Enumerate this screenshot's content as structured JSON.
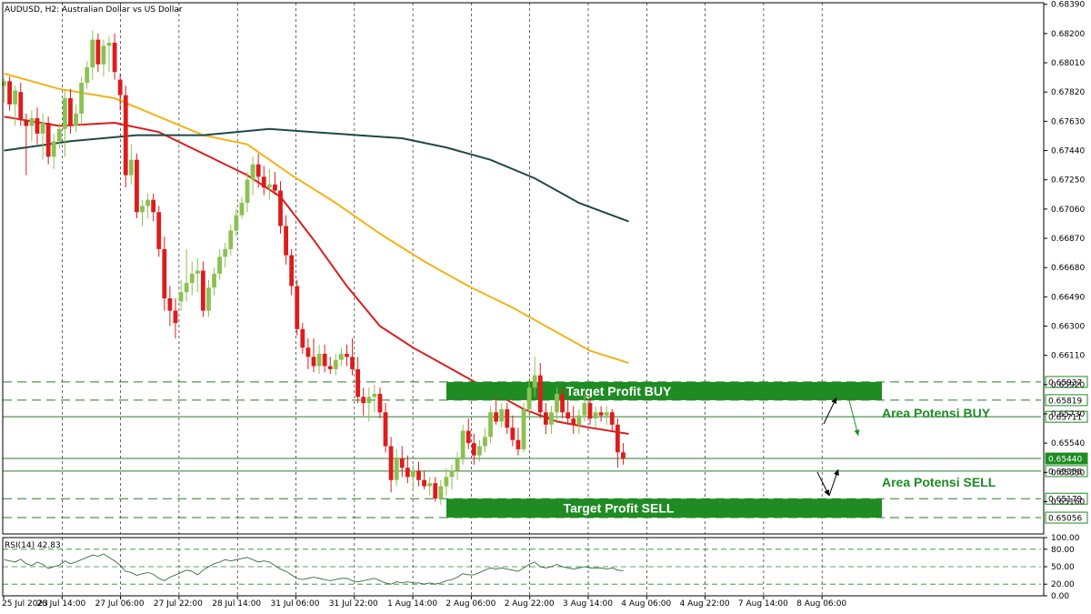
{
  "window": {
    "title": "AUDUSD, H2:  Australian Dollar vs US Dollar"
  },
  "colors": {
    "bull": "#8cc152",
    "bear": "#dd1c1c",
    "ma_red": "#dd1c1c",
    "ma_orange": "#f2b31a",
    "ma_teal": "#1d4a45",
    "zone": "#1e8c23",
    "rsi_line": "#1f5a2a",
    "grid": "#000000",
    "hline": "#2b7a2b"
  },
  "chart_data": {
    "type": "candlestick",
    "symbol": "AUDUSD",
    "timeframe": "H2",
    "ylim": [
      0.6495,
      0.684
    ],
    "price_ticks": [
      "0.68390",
      "0.68200",
      "0.68010",
      "0.67820",
      "0.67630",
      "0.67440",
      "0.67250",
      "0.67060",
      "0.66870",
      "0.66680",
      "0.66490",
      "0.66300",
      "0.66110",
      "0.65920",
      "0.65730",
      "0.65540",
      "0.65350",
      "0.65160"
    ],
    "x_labels": [
      "25 Jul 2023",
      "26 Jul 14:00",
      "27 Jul 06:00",
      "27 Jul 22:00",
      "28 Jul 14:00",
      "31 Jul 06:00",
      "31 Jul 22:00",
      "1 Aug 14:00",
      "2 Aug 06:00",
      "2 Aug 22:00",
      "3 Aug 14:00",
      "4 Aug 06:00",
      "4 Aug 22:00",
      "7 Aug 14:00",
      "8 Aug 06:00"
    ],
    "candles": [
      [
        0.6786,
        0.6791,
        0.6775,
        0.6789
      ],
      [
        0.6789,
        0.6792,
        0.677,
        0.6774
      ],
      [
        0.6774,
        0.6786,
        0.676,
        0.6783
      ],
      [
        0.6782,
        0.6788,
        0.676,
        0.6764
      ],
      [
        0.6764,
        0.6768,
        0.6728,
        0.676
      ],
      [
        0.676,
        0.677,
        0.675,
        0.6765
      ],
      [
        0.6765,
        0.6772,
        0.6748,
        0.6755
      ],
      [
        0.6755,
        0.6768,
        0.6738,
        0.6762
      ],
      [
        0.6762,
        0.6766,
        0.6735,
        0.674
      ],
      [
        0.674,
        0.6755,
        0.6732,
        0.675
      ],
      [
        0.675,
        0.6762,
        0.6745,
        0.6758
      ],
      [
        0.6758,
        0.6784,
        0.674,
        0.6778
      ],
      [
        0.6778,
        0.6784,
        0.6755,
        0.676
      ],
      [
        0.676,
        0.6774,
        0.6756,
        0.6768
      ],
      [
        0.6768,
        0.6792,
        0.676,
        0.6788
      ],
      [
        0.6788,
        0.6802,
        0.6784,
        0.6798
      ],
      [
        0.6798,
        0.6822,
        0.679,
        0.6816
      ],
      [
        0.6816,
        0.682,
        0.6795,
        0.68
      ],
      [
        0.68,
        0.6816,
        0.6792,
        0.6812
      ],
      [
        0.6812,
        0.6818,
        0.6795,
        0.6814
      ],
      [
        0.6814,
        0.682,
        0.679,
        0.6795
      ],
      [
        0.679,
        0.6794,
        0.677,
        0.678
      ],
      [
        0.678,
        0.6786,
        0.672,
        0.6728
      ],
      [
        0.6728,
        0.6748,
        0.6722,
        0.6738
      ],
      [
        0.6738,
        0.6742,
        0.67,
        0.6704
      ],
      [
        0.6704,
        0.6712,
        0.6695,
        0.6708
      ],
      [
        0.6708,
        0.6716,
        0.67,
        0.6712
      ],
      [
        0.6712,
        0.6716,
        0.6698,
        0.6704
      ],
      [
        0.6704,
        0.6708,
        0.6675,
        0.668
      ],
      [
        0.668,
        0.6688,
        0.664,
        0.6648
      ],
      [
        0.6648,
        0.6656,
        0.663,
        0.664
      ],
      [
        0.664,
        0.6648,
        0.6622,
        0.6632
      ],
      [
        0.6646,
        0.666,
        0.664,
        0.6652
      ],
      [
        0.6652,
        0.668,
        0.6646,
        0.6658
      ],
      [
        0.6658,
        0.6672,
        0.665,
        0.6664
      ],
      [
        0.6664,
        0.6674,
        0.6652,
        0.6666
      ],
      [
        0.6666,
        0.6672,
        0.6636,
        0.664
      ],
      [
        0.664,
        0.666,
        0.6636,
        0.6655
      ],
      [
        0.6655,
        0.6668,
        0.665,
        0.6664
      ],
      [
        0.6664,
        0.668,
        0.666,
        0.6675
      ],
      [
        0.6675,
        0.6684,
        0.6668,
        0.668
      ],
      [
        0.668,
        0.6696,
        0.6676,
        0.6692
      ],
      [
        0.6692,
        0.6706,
        0.6688,
        0.6702
      ],
      [
        0.6702,
        0.6714,
        0.67,
        0.671
      ],
      [
        0.671,
        0.673,
        0.6704,
        0.6725
      ],
      [
        0.6725,
        0.674,
        0.6715,
        0.6735
      ],
      [
        0.6735,
        0.6742,
        0.672,
        0.6727
      ],
      [
        0.6727,
        0.6734,
        0.6715,
        0.672
      ],
      [
        0.672,
        0.6732,
        0.6712,
        0.6722
      ],
      [
        0.6722,
        0.673,
        0.6715,
        0.6718
      ],
      [
        0.6718,
        0.6724,
        0.669,
        0.6695
      ],
      [
        0.6695,
        0.6702,
        0.667,
        0.6676
      ],
      [
        0.6676,
        0.668,
        0.665,
        0.6656
      ],
      [
        0.6656,
        0.666,
        0.6624,
        0.6628
      ],
      [
        0.6628,
        0.6632,
        0.6612,
        0.6616
      ],
      [
        0.6616,
        0.6622,
        0.6602,
        0.661
      ],
      [
        0.661,
        0.6622,
        0.66,
        0.6604
      ],
      [
        0.6604,
        0.6618,
        0.6599,
        0.6612
      ],
      [
        0.6612,
        0.6618,
        0.66,
        0.6604
      ],
      [
        0.6604,
        0.661,
        0.6599,
        0.6602
      ],
      [
        0.6602,
        0.6612,
        0.6598,
        0.6608
      ],
      [
        0.6608,
        0.6616,
        0.6604,
        0.6612
      ],
      [
        0.6612,
        0.6618,
        0.6604,
        0.661
      ],
      [
        0.661,
        0.6622,
        0.6598,
        0.6602
      ],
      [
        0.6602,
        0.661,
        0.658,
        0.6584
      ],
      [
        0.6584,
        0.659,
        0.6572,
        0.658
      ],
      [
        0.658,
        0.659,
        0.6568,
        0.6584
      ],
      [
        0.6584,
        0.6592,
        0.6574,
        0.6586
      ],
      [
        0.6586,
        0.659,
        0.657,
        0.6574
      ],
      [
        0.6574,
        0.658,
        0.6548,
        0.6552
      ],
      [
        0.6552,
        0.6558,
        0.6522,
        0.653
      ],
      [
        0.653,
        0.655,
        0.6526,
        0.6544
      ],
      [
        0.6544,
        0.6552,
        0.6532,
        0.6538
      ],
      [
        0.6538,
        0.6546,
        0.6528,
        0.6532
      ],
      [
        0.6532,
        0.654,
        0.6524,
        0.6536
      ],
      [
        0.6536,
        0.6542,
        0.6526,
        0.653
      ],
      [
        0.653,
        0.6536,
        0.6524,
        0.6526
      ],
      [
        0.6526,
        0.6532,
        0.652,
        0.6528
      ],
      [
        0.6528,
        0.6532,
        0.6516,
        0.6518
      ],
      [
        0.6518,
        0.653,
        0.6514,
        0.6526
      ],
      [
        0.6526,
        0.6538,
        0.652,
        0.6532
      ],
      [
        0.6532,
        0.654,
        0.6524,
        0.6536
      ],
      [
        0.6536,
        0.6548,
        0.653,
        0.6544
      ],
      [
        0.6544,
        0.6566,
        0.654,
        0.6562
      ],
      [
        0.6562,
        0.657,
        0.655,
        0.6554
      ],
      [
        0.6554,
        0.656,
        0.654,
        0.6546
      ],
      [
        0.6546,
        0.6556,
        0.6542,
        0.6552
      ],
      [
        0.6552,
        0.6564,
        0.6548,
        0.6558
      ],
      [
        0.6558,
        0.6578,
        0.6554,
        0.6574
      ],
      [
        0.6574,
        0.6584,
        0.6566,
        0.6568
      ],
      [
        0.6568,
        0.658,
        0.6564,
        0.6576
      ],
      [
        0.6576,
        0.658,
        0.656,
        0.6564
      ],
      [
        0.6564,
        0.6572,
        0.6552,
        0.6556
      ],
      [
        0.6556,
        0.6564,
        0.6546,
        0.655
      ],
      [
        0.655,
        0.658,
        0.6548,
        0.6576
      ],
      [
        0.6576,
        0.6596,
        0.657,
        0.659
      ],
      [
        0.659,
        0.661,
        0.6584,
        0.6598
      ],
      [
        0.6598,
        0.6606,
        0.657,
        0.6574
      ],
      [
        0.6574,
        0.658,
        0.656,
        0.6566
      ],
      [
        0.6566,
        0.6578,
        0.656,
        0.6574
      ],
      [
        0.6574,
        0.659,
        0.6568,
        0.6586
      ],
      [
        0.6586,
        0.659,
        0.657,
        0.6574
      ],
      [
        0.6574,
        0.6582,
        0.6566,
        0.657
      ],
      [
        0.657,
        0.6578,
        0.656,
        0.6566
      ],
      [
        0.6566,
        0.6576,
        0.656,
        0.6572
      ],
      [
        0.6572,
        0.6586,
        0.6568,
        0.658
      ],
      [
        0.658,
        0.6584,
        0.6566,
        0.657
      ],
      [
        0.657,
        0.6578,
        0.6564,
        0.6574
      ],
      [
        0.6574,
        0.6578,
        0.6568,
        0.6572
      ],
      [
        0.6572,
        0.6578,
        0.6566,
        0.6574
      ],
      [
        0.6574,
        0.6576,
        0.6562,
        0.6566
      ],
      [
        0.6566,
        0.657,
        0.6538,
        0.6548
      ],
      [
        0.6548,
        0.6554,
        0.654,
        0.6544
      ]
    ],
    "moving_averages": [
      {
        "color": "#dd1c1c",
        "points": [
          [
            0,
            0.6766
          ],
          [
            10,
            0.676
          ],
          [
            20,
            0.6762
          ],
          [
            28,
            0.6756
          ],
          [
            36,
            0.6742
          ],
          [
            44,
            0.6728
          ],
          [
            50,
            0.6714
          ],
          [
            56,
            0.6686
          ],
          [
            62,
            0.6656
          ],
          [
            68,
            0.663
          ],
          [
            74,
            0.6616
          ],
          [
            82,
            0.66
          ],
          [
            88,
            0.6588
          ],
          [
            94,
            0.6576
          ],
          [
            100,
            0.6568
          ],
          [
            106,
            0.6564
          ],
          [
            113,
            0.656
          ]
        ]
      },
      {
        "color": "#f2b31a",
        "points": [
          [
            0,
            0.6794
          ],
          [
            10,
            0.6784
          ],
          [
            20,
            0.6778
          ],
          [
            28,
            0.6766
          ],
          [
            36,
            0.6754
          ],
          [
            44,
            0.6748
          ],
          [
            52,
            0.6728
          ],
          [
            60,
            0.671
          ],
          [
            68,
            0.669
          ],
          [
            76,
            0.6672
          ],
          [
            84,
            0.6656
          ],
          [
            92,
            0.6642
          ],
          [
            100,
            0.6626
          ],
          [
            106,
            0.6614
          ],
          [
            113,
            0.6606
          ]
        ]
      },
      {
        "color": "#1d4a45",
        "points": [
          [
            0,
            0.6744
          ],
          [
            12,
            0.675
          ],
          [
            24,
            0.6754
          ],
          [
            36,
            0.6754
          ],
          [
            48,
            0.6758
          ],
          [
            56,
            0.6756
          ],
          [
            64,
            0.6754
          ],
          [
            72,
            0.6752
          ],
          [
            80,
            0.6746
          ],
          [
            88,
            0.6738
          ],
          [
            96,
            0.6726
          ],
          [
            104,
            0.671
          ],
          [
            113,
            0.6698
          ]
        ]
      }
    ],
    "horizontal_lines": [
      {
        "price": "0.65937",
        "style": "dashed"
      },
      {
        "price": "0.65819",
        "style": "dashed"
      },
      {
        "price": "0.65711",
        "style": "solid"
      },
      {
        "price": "0.65440",
        "style": "solid"
      },
      {
        "price": "0.65358",
        "style": "solid"
      },
      {
        "price": "0.65179",
        "style": "dashed"
      },
      {
        "price": "0.65056",
        "style": "dashed"
      }
    ],
    "current_price": "0.65440",
    "zones": [
      {
        "label": "Target Profit BUY",
        "top": 0.65937,
        "bottom": 0.65819
      },
      {
        "label": "Target Profit SELL",
        "top": 0.65179,
        "bottom": 0.65056
      }
    ],
    "areas": [
      {
        "label": "Area Potensi BUY",
        "price": 0.65711
      },
      {
        "label": "Area Potensi SELL",
        "price": 0.65358
      }
    ],
    "rsi": {
      "label": "RSI(14) 42.83",
      "ticks": [
        "100.00",
        "80.00",
        "50.00",
        "20.00",
        "0.00"
      ],
      "levels": [
        80,
        50,
        20
      ],
      "values": [
        62,
        60,
        58,
        63,
        55,
        52,
        58,
        54,
        47,
        50,
        53,
        60,
        55,
        58,
        62,
        66,
        70,
        68,
        72,
        66,
        60,
        52,
        42,
        40,
        35,
        38,
        40,
        37,
        30,
        26,
        32,
        36,
        40,
        44,
        42,
        36,
        44,
        50,
        55,
        58,
        62,
        60,
        62,
        64,
        66,
        62,
        58,
        60,
        58,
        52,
        46,
        42,
        36,
        30,
        28,
        30,
        32,
        30,
        28,
        26,
        28,
        30,
        30,
        26,
        24,
        26,
        28,
        30,
        26,
        22,
        20,
        24,
        22,
        24,
        22,
        22,
        20,
        22,
        20,
        22,
        26,
        28,
        32,
        38,
        36,
        36,
        40,
        44,
        48,
        46,
        48,
        46,
        44,
        42,
        48,
        54,
        58,
        50,
        48,
        50,
        54,
        50,
        48,
        46,
        48,
        50,
        48,
        48,
        48,
        46,
        48,
        44,
        43
      ]
    }
  }
}
